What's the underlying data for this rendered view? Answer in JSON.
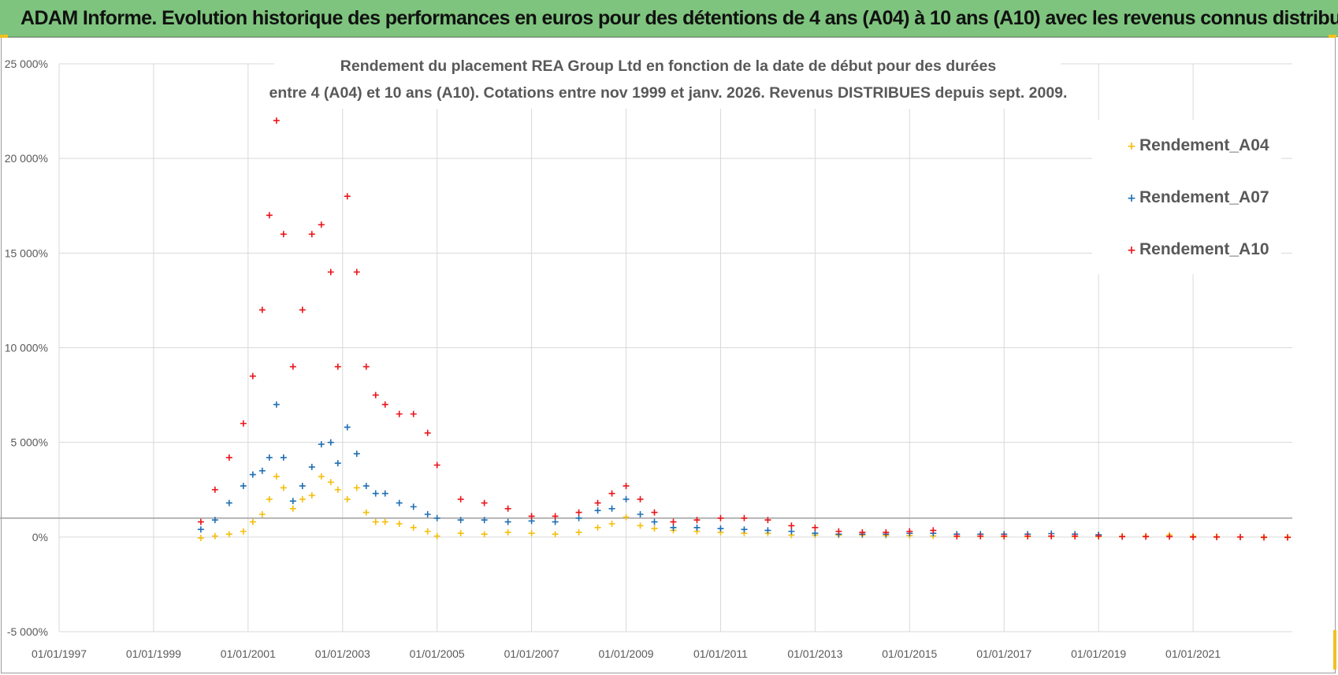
{
  "banner": {
    "title": "ADAM Informe. Evolution historique des performances en euros pour des détentions de 4 ans (A04) à 10 ans (A10) avec les revenus connus distribués"
  },
  "colors": {
    "banner_bg": "#7ec47e",
    "a04": "#f5be0b",
    "a07": "#1f6fb4",
    "a10": "#e8141a",
    "grid": "#d9d9d9",
    "reference_line": "#a6a6a6"
  },
  "chart_data": {
    "type": "scatter",
    "title_line1": "Rendement du placement REA Group Ltd en fonction de la date de début pour des durées",
    "title_line2": "entre 4 (A04) et 10 ans (A10).  Cotations entre nov 1999 et janv. 2026. Revenus DISTRIBUES depuis sept. 2009.",
    "xlabel": "",
    "ylabel": "",
    "ylim": [
      -5000,
      25000
    ],
    "xlim": [
      1997.0,
      2023.1
    ],
    "y_ticks": [
      25000,
      20000,
      15000,
      10000,
      5000,
      0,
      -5000
    ],
    "y_tick_labels": [
      "25 000%",
      "20 000%",
      "15 000%",
      "10 000%",
      "5 000%",
      "0%",
      "-5 000%"
    ],
    "x_ticks": [
      1997,
      1999,
      2001,
      2003,
      2005,
      2007,
      2009,
      2011,
      2013,
      2015,
      2017,
      2019,
      2021
    ],
    "x_tick_labels": [
      "01/01/1997",
      "01/01/1999",
      "01/01/2001",
      "01/01/2003",
      "01/01/2005",
      "01/01/2007",
      "01/01/2009",
      "01/01/2011",
      "01/01/2013",
      "01/01/2015",
      "01/01/2017",
      "01/01/2019",
      "01/01/2021"
    ],
    "reference_line_y": 1000,
    "legend_position": "top-right",
    "marker": "+",
    "series": [
      {
        "name": "Rendement_A04",
        "color_key": "a04",
        "x": [
          2000.0,
          2000.3,
          2000.6,
          2000.9,
          2001.1,
          2001.3,
          2001.45,
          2001.6,
          2001.75,
          2001.95,
          2002.15,
          2002.35,
          2002.55,
          2002.75,
          2002.9,
          2003.1,
          2003.3,
          2003.5,
          2003.7,
          2003.9,
          2004.2,
          2004.5,
          2004.8,
          2005.0,
          2005.5,
          2006.0,
          2006.5,
          2007.0,
          2007.5,
          2008.0,
          2008.4,
          2008.7,
          2009.0,
          2009.3,
          2009.6,
          2010.0,
          2010.5,
          2011.0,
          2011.5,
          2012.0,
          2012.5,
          2013.0,
          2013.5,
          2014.0,
          2014.5,
          2015.0,
          2015.5,
          2016.0,
          2016.5,
          2017.0,
          2017.5,
          2018.0,
          2018.5,
          2019.0,
          2019.5,
          2020.0,
          2020.5,
          2021.0,
          2021.5,
          2022.0,
          2022.5,
          2023.0
        ],
        "y": [
          -50,
          50,
          150,
          300,
          800,
          1200,
          2000,
          3200,
          2600,
          1500,
          2000,
          2200,
          3200,
          2900,
          2500,
          2000,
          2600,
          1300,
          800,
          800,
          700,
          500,
          300,
          50,
          200,
          150,
          250,
          200,
          150,
          250,
          500,
          700,
          1050,
          600,
          450,
          350,
          300,
          250,
          200,
          200,
          100,
          100,
          100,
          100,
          80,
          80,
          60,
          30,
          40,
          30,
          30,
          40,
          30,
          30,
          40,
          50,
          100,
          50,
          20,
          0,
          0,
          0
        ]
      },
      {
        "name": "Rendement_A07",
        "color_key": "a07",
        "x": [
          2000.0,
          2000.3,
          2000.6,
          2000.9,
          2001.1,
          2001.3,
          2001.45,
          2001.6,
          2001.75,
          2001.95,
          2002.15,
          2002.35,
          2002.55,
          2002.75,
          2002.9,
          2003.1,
          2003.3,
          2003.5,
          2003.7,
          2003.9,
          2004.2,
          2004.5,
          2004.8,
          2005.0,
          2005.5,
          2006.0,
          2006.5,
          2007.0,
          2007.5,
          2008.0,
          2008.4,
          2008.7,
          2009.0,
          2009.3,
          2009.6,
          2010.0,
          2010.5,
          2011.0,
          2011.5,
          2012.0,
          2012.5,
          2013.0,
          2013.5,
          2014.0,
          2014.5,
          2015.0,
          2015.5,
          2016.0,
          2016.5,
          2017.0,
          2017.5,
          2018.0,
          2018.5,
          2019.0
        ],
        "y": [
          400,
          900,
          1800,
          2700,
          3300,
          3500,
          4200,
          7000,
          4200,
          1900,
          2700,
          3700,
          4900,
          5000,
          3900,
          5800,
          4400,
          2700,
          2300,
          2300,
          1800,
          1600,
          1200,
          1000,
          900,
          900,
          800,
          850,
          800,
          1000,
          1400,
          1500,
          2000,
          1200,
          800,
          500,
          500,
          450,
          400,
          350,
          300,
          200,
          150,
          150,
          150,
          200,
          200,
          150,
          150,
          150,
          150,
          180,
          150,
          120
        ]
      },
      {
        "name": "Rendement_A10",
        "color_key": "a10",
        "x": [
          2000.0,
          2000.3,
          2000.6,
          2000.9,
          2001.1,
          2001.3,
          2001.45,
          2001.6,
          2001.75,
          2001.95,
          2002.15,
          2002.35,
          2002.55,
          2002.75,
          2002.9,
          2003.1,
          2003.3,
          2003.5,
          2003.7,
          2003.9,
          2004.2,
          2004.5,
          2004.8,
          2005.0,
          2005.5,
          2006.0,
          2006.5,
          2007.0,
          2007.5,
          2008.0,
          2008.4,
          2008.7,
          2009.0,
          2009.3,
          2009.6,
          2010.0,
          2010.5,
          2011.0,
          2011.5,
          2012.0,
          2012.5,
          2013.0,
          2013.5,
          2014.0,
          2014.5,
          2015.0,
          2015.5,
          2016.0,
          2016.5,
          2017.0,
          2017.5,
          2018.0,
          2018.5,
          2019.0,
          2019.5,
          2020.0,
          2020.5,
          2021.0,
          2021.5,
          2022.0,
          2022.5,
          2023.0
        ],
        "y": [
          800,
          2500,
          4200,
          6000,
          8500,
          12000,
          17000,
          22000,
          16000,
          9000,
          12000,
          16000,
          16500,
          14000,
          9000,
          18000,
          14000,
          9000,
          7500,
          7000,
          6500,
          6500,
          5500,
          3800,
          2000,
          1800,
          1500,
          1100,
          1100,
          1300,
          1800,
          2300,
          2700,
          2000,
          1300,
          800,
          900,
          1000,
          1000,
          900,
          600,
          500,
          300,
          250,
          250,
          300,
          350,
          50,
          50,
          50,
          50,
          50,
          50,
          50,
          20,
          20,
          20,
          0,
          0,
          0,
          -20,
          -20
        ]
      }
    ]
  }
}
